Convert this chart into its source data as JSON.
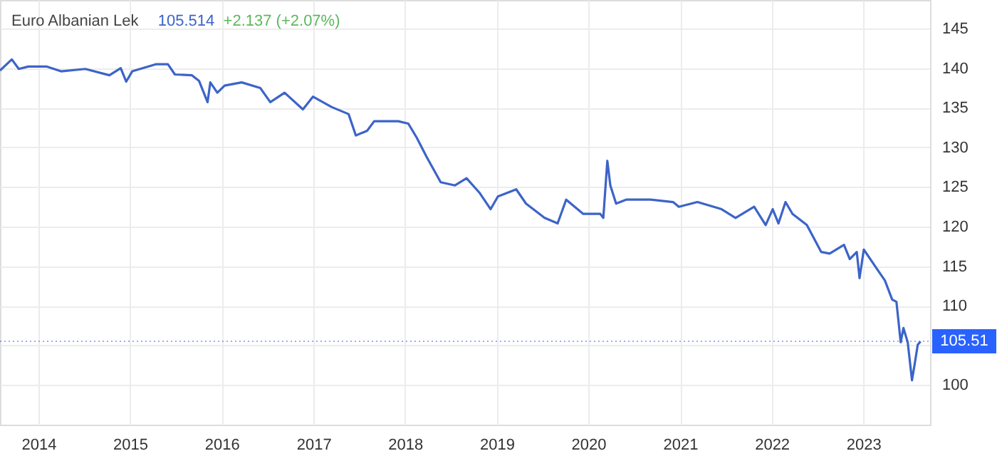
{
  "chart_data": {
    "type": "line",
    "title": "Euro Albanian Lek",
    "annotations": [
      "105.514",
      "+2.137 (+2.07%)"
    ],
    "x": [
      "2013-08-01",
      "2013-09-17",
      "2013-10-15",
      "2013-11-22",
      "2014-02-04",
      "2014-04-01",
      "2014-07-07",
      "2014-10-11",
      "2014-11-25",
      "2014-12-17",
      "2015-01-10",
      "2015-04-16",
      "2015-06-01",
      "2015-06-29",
      "2015-09-05",
      "2015-10-03",
      "2015-11-06",
      "2015-11-17",
      "2015-12-15",
      "2016-01-13",
      "2016-03-21",
      "2016-06-03",
      "2016-07-13",
      "2016-09-08",
      "2016-11-20",
      "2016-12-30",
      "2017-03-14",
      "2017-05-21",
      "2017-06-19",
      "2017-08-03",
      "2017-08-31",
      "2017-12-05",
      "2018-01-14",
      "2018-02-17",
      "2018-03-28",
      "2018-05-23",
      "2018-07-19",
      "2018-09-03",
      "2018-10-24",
      "2018-12-08",
      "2019-01-06",
      "2019-03-20",
      "2019-04-28",
      "2019-07-11",
      "2019-09-01",
      "2019-10-05",
      "2019-12-12",
      "2020-02-18",
      "2020-03-01",
      "2020-03-17",
      "2020-03-29",
      "2020-04-21",
      "2020-05-31",
      "2020-09-05",
      "2020-12-04",
      "2020-12-27",
      "2021-03-11",
      "2021-06-15",
      "2021-08-10",
      "2021-10-23",
      "2021-12-08",
      "2022-01-05",
      "2022-01-28",
      "2022-02-25",
      "2022-03-25",
      "2022-05-21",
      "2022-07-17",
      "2022-08-20",
      "2022-10-16",
      "2022-11-08",
      "2022-12-06",
      "2022-12-17",
      "2023-01-03",
      "2023-02-17",
      "2023-03-28",
      "2023-04-26",
      "2023-05-13",
      "2023-05-30",
      "2023-06-10",
      "2023-06-27",
      "2023-07-14",
      "2023-07-25",
      "2023-08-06",
      "2023-08-17"
    ],
    "series": [
      {
        "color": "#3c64c8",
        "values": [
          139.7,
          141.1,
          139.9,
          140.2,
          140.2,
          139.6,
          139.9,
          139.1,
          140.0,
          138.3,
          139.6,
          140.5,
          140.5,
          139.2,
          139.1,
          138.4,
          135.7,
          138.2,
          136.9,
          137.8,
          138.2,
          137.5,
          135.7,
          136.9,
          134.8,
          136.4,
          135.1,
          134.2,
          131.5,
          132.1,
          133.3,
          133.3,
          133.0,
          131.2,
          128.8,
          125.6,
          125.2,
          126.1,
          124.3,
          122.2,
          123.8,
          124.7,
          122.9,
          121.1,
          120.4,
          123.4,
          121.6,
          121.6,
          121.1,
          128.3,
          125.2,
          122.9,
          123.4,
          123.4,
          123.1,
          122.5,
          123.1,
          122.2,
          121.1,
          122.5,
          120.2,
          122.2,
          120.4,
          123.1,
          121.6,
          120.2,
          116.8,
          116.6,
          117.7,
          115.9,
          116.8,
          113.5,
          117.1,
          115.0,
          113.2,
          110.8,
          110.5,
          105.4,
          107.2,
          105.4,
          100.6,
          102.7,
          105.1,
          105.5
        ]
      }
    ],
    "xlim": [
      "2013-08-01",
      "2023-09-24"
    ],
    "ylim": [
      95,
      148.6
    ],
    "xticks": [
      "2014",
      "2015",
      "2016",
      "2017",
      "2018",
      "2019",
      "2020",
      "2021",
      "2022",
      "2023"
    ],
    "yticks": [
      100,
      {
        "value": 105,
        "label": null
      },
      110,
      115,
      120,
      125,
      130,
      135,
      140,
      145
    ],
    "ref_lines": [
      {
        "axis": "y",
        "value": 105.514,
        "label": "105.51",
        "color": "#2962ff",
        "line_style": "dotted"
      }
    ],
    "grid": true,
    "line_style": "solid",
    "marker": "none"
  }
}
